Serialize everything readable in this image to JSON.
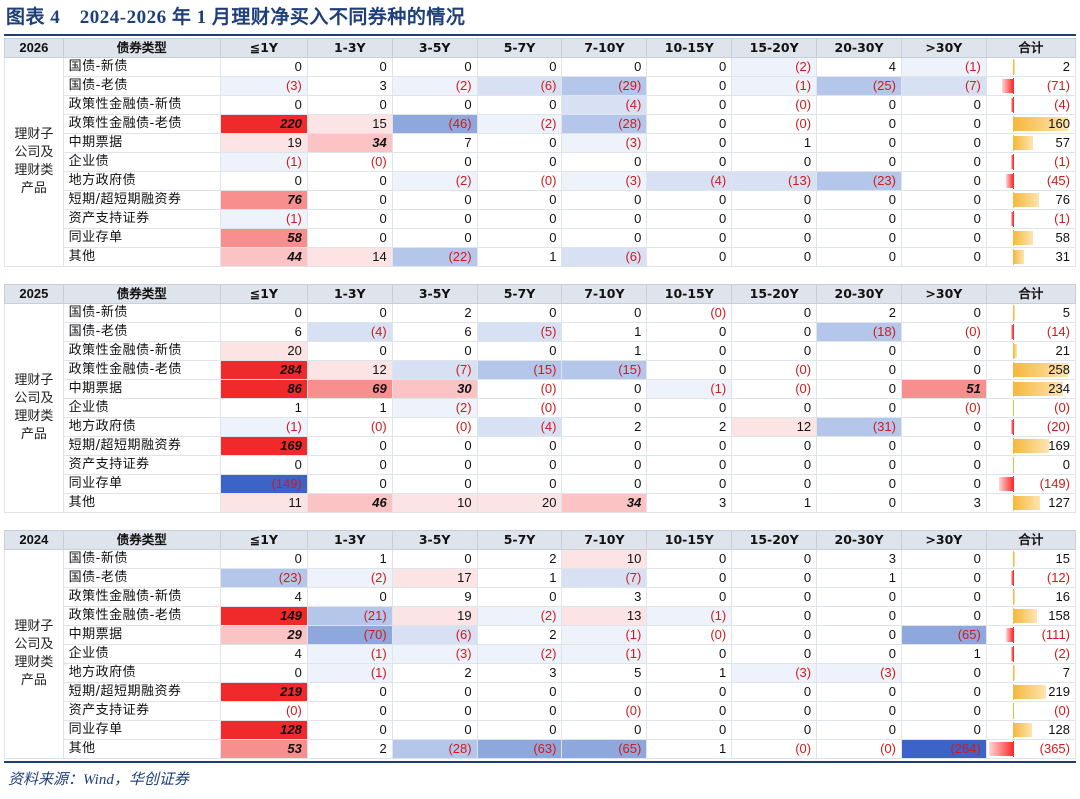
{
  "title": "图表 4　2024-2026 年 1 月理财净买入不同券种的情况",
  "source": "资料来源：Wind，华创证券",
  "header": {
    "category_label": "债券类型",
    "columns": [
      "≦1Y",
      "1-3Y",
      "3-5Y",
      "5-7Y",
      "7-10Y",
      "10-15Y",
      "15-20Y",
      "20-30Y",
      ">30Y",
      "合计"
    ]
  },
  "colors": {
    "red_strong": "#f02a2a",
    "blue_strong": "#3b63c8",
    "total_pos": "#f6b73c",
    "total_neg": "#ff2d2d"
  },
  "sections": [
    {
      "year": "2026",
      "side_label": "理财子公司及理财类产品",
      "rows": [
        {
          "name": "国债-新债",
          "values": [
            "0",
            "0",
            "0",
            "0",
            "0",
            "0",
            "(2)",
            "4",
            "(1)",
            "2"
          ]
        },
        {
          "name": "国债-老债",
          "values": [
            "(3)",
            "3",
            "(2)",
            "(6)",
            "(29)",
            "0",
            "(1)",
            "(25)",
            "(7)",
            "(71)"
          ]
        },
        {
          "name": "政策性金融债-新债",
          "values": [
            "0",
            "0",
            "0",
            "0",
            "(4)",
            "0",
            "(0)",
            "0",
            "0",
            "(4)"
          ]
        },
        {
          "name": "政策性金融债-老债",
          "values": [
            "220",
            "15",
            "(46)",
            "(2)",
            "(28)",
            "0",
            "(0)",
            "0",
            "0",
            "160"
          ]
        },
        {
          "name": "中期票据",
          "values": [
            "19",
            "34",
            "7",
            "0",
            "(3)",
            "0",
            "1",
            "0",
            "0",
            "57"
          ]
        },
        {
          "name": "企业债",
          "values": [
            "(1)",
            "(0)",
            "0",
            "0",
            "0",
            "0",
            "0",
            "0",
            "0",
            "(1)"
          ]
        },
        {
          "name": "地方政府债",
          "values": [
            "0",
            "0",
            "(2)",
            "(0)",
            "(3)",
            "(4)",
            "(13)",
            "(23)",
            "0",
            "(45)"
          ]
        },
        {
          "name": "短期/超短期融资券",
          "values": [
            "76",
            "0",
            "0",
            "0",
            "0",
            "0",
            "0",
            "0",
            "0",
            "76"
          ]
        },
        {
          "name": "资产支持证券",
          "values": [
            "(1)",
            "0",
            "0",
            "0",
            "0",
            "0",
            "0",
            "0",
            "0",
            "(1)"
          ]
        },
        {
          "name": "同业存单",
          "values": [
            "58",
            "0",
            "0",
            "0",
            "0",
            "0",
            "0",
            "0",
            "0",
            "58"
          ]
        },
        {
          "name": "其他",
          "values": [
            "44",
            "14",
            "(22)",
            "1",
            "(6)",
            "0",
            "0",
            "0",
            "0",
            "31"
          ]
        }
      ]
    },
    {
      "year": "2025",
      "side_label": "理财子公司及理财类产品",
      "rows": [
        {
          "name": "国债-新债",
          "values": [
            "0",
            "0",
            "2",
            "0",
            "0",
            "(0)",
            "0",
            "2",
            "0",
            "5"
          ]
        },
        {
          "name": "国债-老债",
          "values": [
            "6",
            "(4)",
            "6",
            "(5)",
            "1",
            "0",
            "0",
            "(18)",
            "(0)",
            "(14)"
          ]
        },
        {
          "name": "政策性金融债-新债",
          "values": [
            "20",
            "0",
            "0",
            "0",
            "1",
            "0",
            "0",
            "0",
            "0",
            "21"
          ]
        },
        {
          "name": "政策性金融债-老债",
          "values": [
            "284",
            "12",
            "(7)",
            "(15)",
            "(15)",
            "0",
            "(0)",
            "0",
            "0",
            "258"
          ]
        },
        {
          "name": "中期票据",
          "values": [
            "86",
            "69",
            "30",
            "(0)",
            "0",
            "(1)",
            "(0)",
            "0",
            "51",
            "234"
          ]
        },
        {
          "name": "企业债",
          "values": [
            "1",
            "1",
            "(2)",
            "(0)",
            "0",
            "0",
            "0",
            "0",
            "(0)",
            "(0)"
          ]
        },
        {
          "name": "地方政府债",
          "values": [
            "(1)",
            "(0)",
            "(0)",
            "(4)",
            "2",
            "2",
            "12",
            "(31)",
            "0",
            "(20)"
          ]
        },
        {
          "name": "短期/超短期融资券",
          "values": [
            "169",
            "0",
            "0",
            "0",
            "0",
            "0",
            "0",
            "0",
            "0",
            "169"
          ]
        },
        {
          "name": "资产支持证券",
          "values": [
            "0",
            "0",
            "0",
            "0",
            "0",
            "0",
            "0",
            "0",
            "0",
            "0"
          ]
        },
        {
          "name": "同业存单",
          "values": [
            "(149)",
            "0",
            "0",
            "0",
            "0",
            "0",
            "0",
            "0",
            "0",
            "(149)"
          ]
        },
        {
          "name": "其他",
          "values": [
            "11",
            "46",
            "10",
            "20",
            "34",
            "3",
            "1",
            "0",
            "3",
            "127"
          ]
        }
      ]
    },
    {
      "year": "2024",
      "side_label": "理财子公司及理财类产品",
      "rows": [
        {
          "name": "国债-新债",
          "values": [
            "0",
            "1",
            "0",
            "2",
            "10",
            "0",
            "0",
            "3",
            "0",
            "15"
          ]
        },
        {
          "name": "国债-老债",
          "values": [
            "(23)",
            "(2)",
            "17",
            "1",
            "(7)",
            "0",
            "0",
            "1",
            "0",
            "(12)"
          ]
        },
        {
          "name": "政策性金融债-新债",
          "values": [
            "4",
            "0",
            "9",
            "0",
            "3",
            "0",
            "0",
            "0",
            "0",
            "16"
          ]
        },
        {
          "name": "政策性金融债-老债",
          "values": [
            "149",
            "(21)",
            "19",
            "(2)",
            "13",
            "(1)",
            "0",
            "0",
            "0",
            "158"
          ]
        },
        {
          "name": "中期票据",
          "values": [
            "29",
            "(70)",
            "(6)",
            "2",
            "(1)",
            "(0)",
            "0",
            "0",
            "(65)",
            "(111)"
          ]
        },
        {
          "name": "企业债",
          "values": [
            "4",
            "(1)",
            "(3)",
            "(2)",
            "(1)",
            "0",
            "0",
            "0",
            "1",
            "(2)"
          ]
        },
        {
          "name": "地方政府债",
          "values": [
            "0",
            "(1)",
            "2",
            "3",
            "5",
            "1",
            "(3)",
            "(3)",
            "0",
            "7"
          ]
        },
        {
          "name": "短期/超短期融资券",
          "values": [
            "219",
            "0",
            "0",
            "0",
            "0",
            "0",
            "0",
            "0",
            "0",
            "219"
          ]
        },
        {
          "name": "资产支持证券",
          "values": [
            "(0)",
            "0",
            "0",
            "0",
            "(0)",
            "0",
            "0",
            "0",
            "0",
            "(0)"
          ]
        },
        {
          "name": "同业存单",
          "values": [
            "128",
            "0",
            "0",
            "0",
            "0",
            "0",
            "0",
            "0",
            "0",
            "128"
          ]
        },
        {
          "name": "其他",
          "values": [
            "53",
            "2",
            "(28)",
            "(63)",
            "(65)",
            "1",
            "(0)",
            "(0)",
            "(264)",
            "(365)"
          ]
        }
      ]
    }
  ]
}
